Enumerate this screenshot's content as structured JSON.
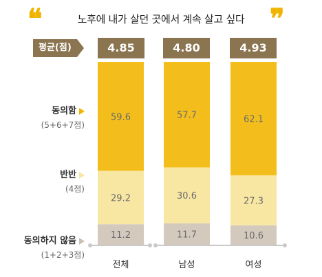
{
  "title": "노후에 내가 살던 곳에서 계속 살고 싶다",
  "quote_open": "❝",
  "quote_close": "❞",
  "avg_label": "평균(점)",
  "averages": [
    "4.85",
    "4.80",
    "4.93"
  ],
  "legend": [
    {
      "main": "동의함",
      "sub": "(5+6+7점)",
      "color": "#f0b400"
    },
    {
      "main": "반반",
      "sub": "(4점)",
      "color": "#f7e7a1"
    },
    {
      "main": "동의하지 않음",
      "sub": "(1+2+3점)",
      "color": "#cbbfb3"
    }
  ],
  "chart_data": {
    "type": "bar",
    "stacked": true,
    "categories": [
      "전체",
      "남성",
      "여성"
    ],
    "series": [
      {
        "name": "동의하지 않음",
        "values": [
          11.2,
          11.7,
          10.6
        ],
        "color": "#d4c9bd"
      },
      {
        "name": "반반",
        "values": [
          29.2,
          30.6,
          27.3
        ],
        "color": "#f8e7a3"
      },
      {
        "name": "동의함",
        "values": [
          59.6,
          57.7,
          62.1
        ],
        "color": "#f3be1c"
      }
    ],
    "ylim": [
      0,
      100
    ]
  }
}
